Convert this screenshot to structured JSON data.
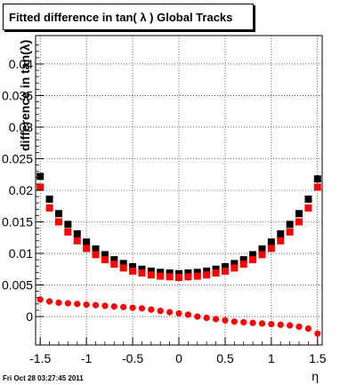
{
  "chart_data": {
    "type": "scatter",
    "title": "Fitted difference in tan( λ )  Global Tracks",
    "xlabel": "η",
    "ylabel": "difference in tan(λ)",
    "xlim": [
      -1.55,
      1.55
    ],
    "ylim": [
      -0.0045,
      0.0445
    ],
    "x_ticks": [
      -1.5,
      -1,
      -0.5,
      0,
      0.5,
      1,
      1.5
    ],
    "x_tick_labels": [
      "-1.5",
      "-1",
      "-0.5",
      "0",
      "0.5",
      "1",
      "1.5"
    ],
    "y_ticks": [
      0,
      0.005,
      0.01,
      0.015,
      0.02,
      0.025,
      0.03,
      0.035,
      0.04
    ],
    "y_tick_labels": [
      "0",
      "0.005",
      "0.01",
      "0.015",
      "0.02",
      "0.025",
      "0.03",
      "0.035",
      "0.04"
    ],
    "grid": true,
    "series": [
      {
        "color": "#000000",
        "marker": "square",
        "x": [
          -1.5,
          -1.4,
          -1.3,
          -1.2,
          -1.1,
          -1.0,
          -0.9,
          -0.8,
          -0.7,
          -0.6,
          -0.5,
          -0.4,
          -0.3,
          -0.2,
          -0.1,
          0.0,
          0.1,
          0.2,
          0.3,
          0.4,
          0.5,
          0.6,
          0.7,
          0.8,
          0.9,
          1.0,
          1.1,
          1.2,
          1.3,
          1.4,
          1.5
        ],
        "y": [
          0.0222,
          0.0186,
          0.0163,
          0.0146,
          0.0131,
          0.0118,
          0.0107,
          0.0098,
          0.009,
          0.0084,
          0.0079,
          0.0075,
          0.0072,
          0.007,
          0.0069,
          0.0068,
          0.0069,
          0.007,
          0.0072,
          0.0075,
          0.0079,
          0.0084,
          0.009,
          0.0098,
          0.0107,
          0.0118,
          0.0131,
          0.0146,
          0.0163,
          0.0186,
          0.0218
        ]
      },
      {
        "color": "#ff0000",
        "marker": "square",
        "x": [
          -1.5,
          -1.4,
          -1.3,
          -1.2,
          -1.1,
          -1.0,
          -0.9,
          -0.8,
          -0.7,
          -0.6,
          -0.5,
          -0.4,
          -0.3,
          -0.2,
          -0.1,
          0.0,
          0.1,
          0.2,
          0.3,
          0.4,
          0.5,
          0.6,
          0.7,
          0.8,
          0.9,
          1.0,
          1.1,
          1.2,
          1.3,
          1.4,
          1.5
        ],
        "y": [
          0.0205,
          0.0172,
          0.015,
          0.0134,
          0.012,
          0.0108,
          0.0098,
          0.009,
          0.0083,
          0.0077,
          0.0072,
          0.0069,
          0.0066,
          0.0064,
          0.0063,
          0.0062,
          0.0063,
          0.0064,
          0.0066,
          0.0069,
          0.0072,
          0.0077,
          0.0083,
          0.009,
          0.0098,
          0.0108,
          0.012,
          0.0134,
          0.015,
          0.0172,
          0.0205
        ]
      },
      {
        "color": "#ff0000",
        "marker": "circle",
        "x": [
          -1.5,
          -1.4,
          -1.3,
          -1.2,
          -1.1,
          -1.0,
          -0.9,
          -0.8,
          -0.7,
          -0.6,
          -0.5,
          -0.4,
          -0.3,
          -0.2,
          -0.1,
          0.0,
          0.1,
          0.2,
          0.3,
          0.4,
          0.5,
          0.6,
          0.7,
          0.8,
          0.9,
          1.0,
          1.1,
          1.2,
          1.3,
          1.4,
          1.5
        ],
        "y": [
          0.0027,
          0.0024,
          0.0022,
          0.0021,
          0.002,
          0.0019,
          0.0018,
          0.0017,
          0.0016,
          0.0015,
          0.0014,
          0.0013,
          0.0011,
          0.0009,
          0.0007,
          0.0005,
          0.0003,
          0.0,
          -0.0002,
          -0.0004,
          -0.0006,
          -0.0008,
          -0.0009,
          -0.001,
          -0.0011,
          -0.0012,
          -0.0013,
          -0.0014,
          -0.0016,
          -0.0019,
          -0.0027
        ]
      }
    ]
  },
  "title": "Fitted difference in tan( λ )  Global Tracks",
  "footer": "Fri Oct 28 03:27:45 2011"
}
